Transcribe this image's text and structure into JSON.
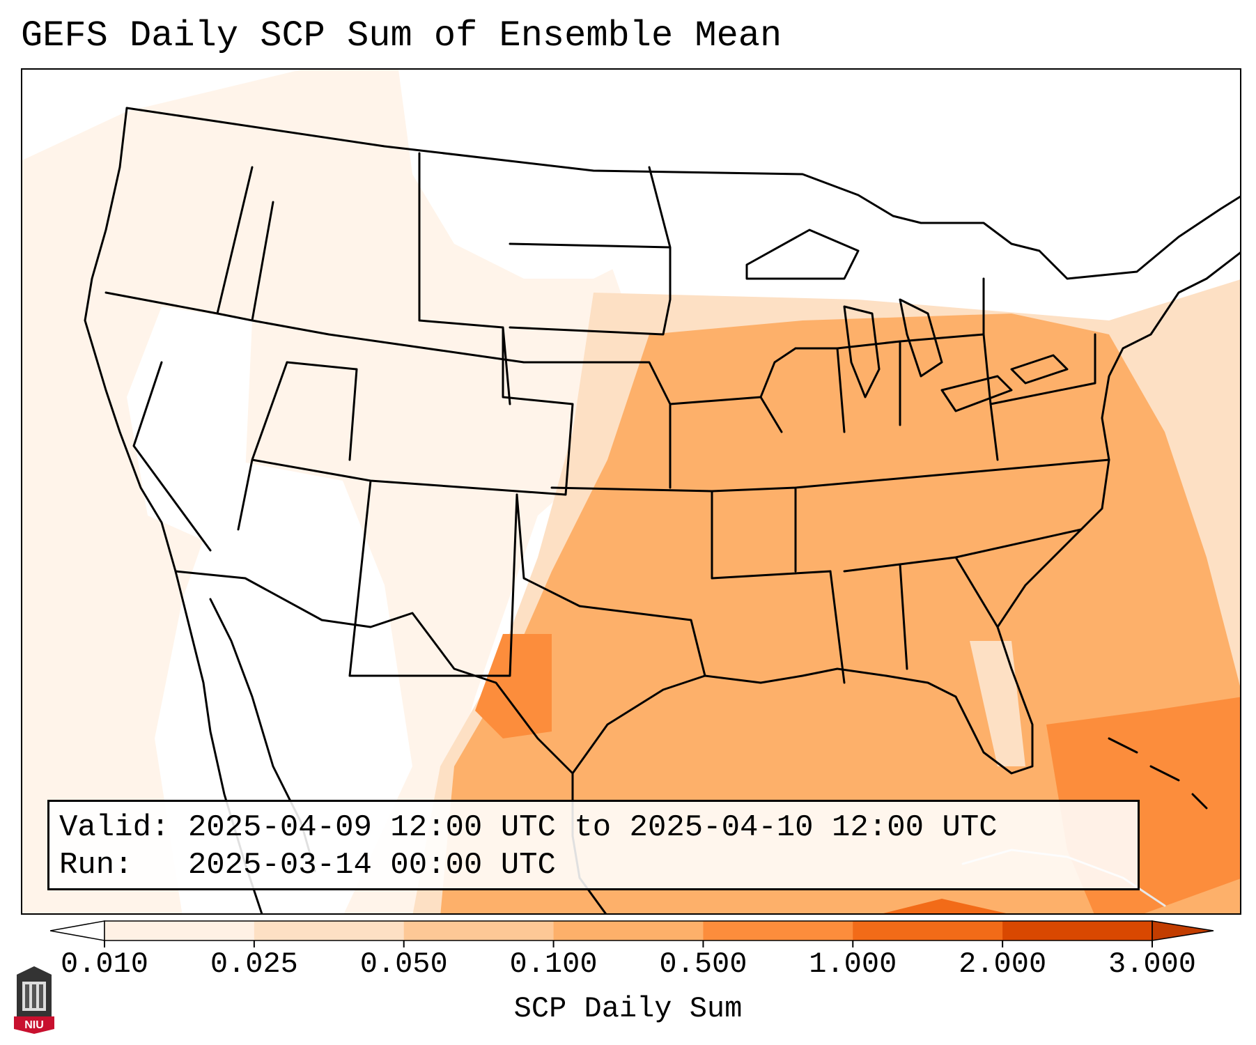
{
  "title": "GEFS Daily SCP Sum of Ensemble Mean",
  "info": {
    "valid_label": "Valid:",
    "valid_value": "2025-04-09 12:00 UTC to 2025-04-10 12:00 UTC",
    "run_label": "Run:",
    "run_value": "2025-03-14 00:00 UTC"
  },
  "colorbar": {
    "label": "SCP Daily Sum",
    "ticks": [
      "0.010",
      "0.025",
      "0.050",
      "0.100",
      "0.500",
      "1.000",
      "2.000",
      "3.000"
    ],
    "colors": [
      "#fff1e5",
      "#fde0c4",
      "#fdc896",
      "#fdb06a",
      "#fc8d3c",
      "#f26b18",
      "#d94801"
    ],
    "under_color": "#ffffff",
    "over_color": "#c23d00"
  },
  "logo": {
    "text": "NIU",
    "icon": "niu-tower-logo-icon"
  }
}
